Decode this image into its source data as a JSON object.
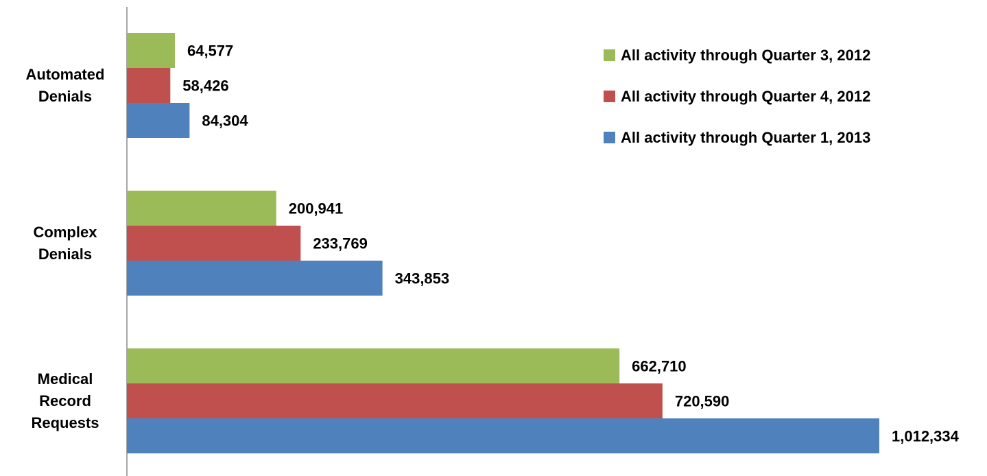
{
  "chart_data": {
    "type": "hbar",
    "categories": [
      "Automated Denials",
      "Complex Denials",
      "Medical Record Requests"
    ],
    "series": [
      {
        "name": "All activity through Quarter 3, 2012",
        "color": "#9bbb59",
        "values": [
          64577,
          200941,
          662710
        ],
        "value_labels": [
          "64,577",
          "200,941",
          "662,710"
        ]
      },
      {
        "name": "All activity through Quarter 4, 2012",
        "color": "#c0504d",
        "values": [
          58426,
          233769,
          720590
        ],
        "value_labels": [
          "58,426",
          "233,769",
          "720,590"
        ]
      },
      {
        "name": "All activity through Quarter 1, 2013",
        "color": "#4f81bd",
        "values": [
          84304,
          343853,
          1012334
        ],
        "value_labels": [
          "84,304",
          "343,853",
          "1,012,334"
        ]
      }
    ],
    "legend": "top-right"
  }
}
